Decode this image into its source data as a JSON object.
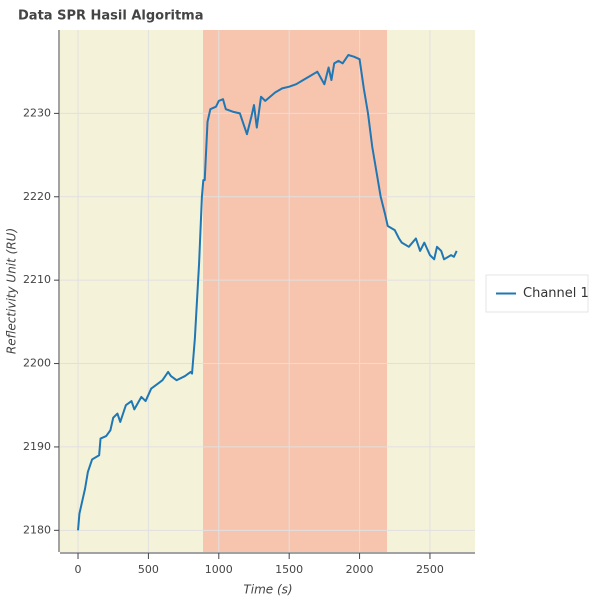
{
  "chart_data": {
    "type": "line",
    "title": "Data SPR Hasil Algoritma",
    "xlabel": "Time (s)",
    "ylabel": "Reflectivity Unit (RU)",
    "xlim": [
      -128,
      2820
    ],
    "ylim": [
      2177.4,
      2240
    ],
    "xticks": [
      0,
      500,
      1000,
      1500,
      2000,
      2500
    ],
    "yticks": [
      2180,
      2190,
      2200,
      2210,
      2220,
      2230
    ],
    "grid": true,
    "legend": "right",
    "bands": [
      {
        "start": -128,
        "end": 888,
        "color": "#f5f2da"
      },
      {
        "start": 888,
        "end": 2195,
        "color": "#f7c4ae"
      },
      {
        "start": 2195,
        "end": 2820,
        "color": "#f5f2da"
      }
    ],
    "x": [
      0,
      10,
      50,
      70,
      100,
      150,
      160,
      200,
      230,
      250,
      280,
      300,
      340,
      380,
      400,
      450,
      480,
      520,
      560,
      600,
      640,
      660,
      700,
      760,
      800,
      810,
      830,
      860,
      880,
      890,
      900,
      920,
      940,
      980,
      1000,
      1030,
      1050,
      1100,
      1150,
      1180,
      1200,
      1230,
      1250,
      1270,
      1300,
      1330,
      1400,
      1450,
      1500,
      1550,
      1600,
      1650,
      1700,
      1750,
      1780,
      1800,
      1820,
      1850,
      1880,
      1920,
      1960,
      2000,
      2030,
      2060,
      2090,
      2120,
      2150,
      2180,
      2200,
      2250,
      2280,
      2300,
      2350,
      2400,
      2430,
      2460,
      2500,
      2530,
      2550,
      2580,
      2600,
      2650,
      2670,
      2690
    ],
    "series": [
      {
        "name": "Channel 1",
        "color": "#1f77b4",
        "values": [
          2180,
          2182,
          2185,
          2187,
          2188.5,
          2189,
          2191,
          2191.3,
          2192,
          2193.5,
          2194,
          2193,
          2195,
          2195.5,
          2194.5,
          2196,
          2195.5,
          2197,
          2197.5,
          2198,
          2199,
          2198.5,
          2198,
          2198.5,
          2199,
          2198.8,
          2203,
          2212,
          2220,
          2222,
          2222,
          2229,
          2230.5,
          2230.8,
          2231.5,
          2231.7,
          2230.5,
          2230.2,
          2230,
          2228.5,
          2227.5,
          2229.5,
          2231,
          2228.3,
          2232,
          2231.5,
          2232.5,
          2233,
          2233.2,
          2233.5,
          2234,
          2234.5,
          2235,
          2233.5,
          2235.5,
          2234,
          2236,
          2236.3,
          2236,
          2237,
          2236.8,
          2236.5,
          2233,
          2230,
          2226,
          2223,
          2220,
          2218,
          2216.5,
          2216,
          2215,
          2214.5,
          2214,
          2215,
          2213.5,
          2214.5,
          2213,
          2212.5,
          2214,
          2213.5,
          2212.5,
          2213,
          2212.8,
          2213.5
        ]
      }
    ]
  }
}
